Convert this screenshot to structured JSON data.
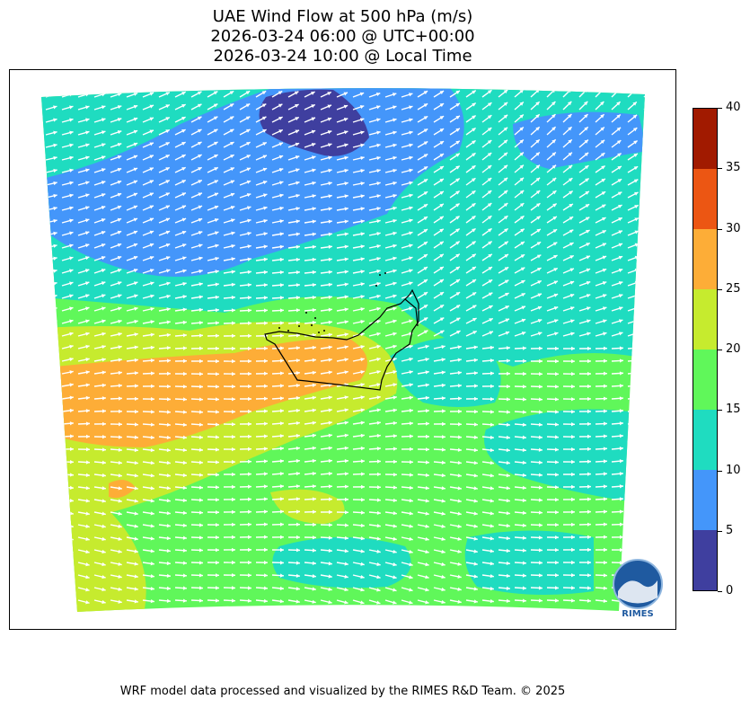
{
  "title": {
    "line1": "UAE Wind Flow at 500 hPa (m/s)",
    "line2": "2026-03-24 06:00 @ UTC+00:00",
    "line3": "2026-03-24 10:00 @ Local Time"
  },
  "colorbar": {
    "ticks": [
      "0",
      "5",
      "10",
      "15",
      "20",
      "25",
      "30",
      "35",
      "40"
    ],
    "colors": [
      "#3f3f9f",
      "#4496fa",
      "#1fdcc0",
      "#60f75a",
      "#c6eb2e",
      "#fdad37",
      "#ec5613",
      "#a11a00"
    ]
  },
  "logo": {
    "text": "RIMES",
    "color": "#1f5aa0"
  },
  "footer": "WRF model data processed and visualized by the RIMES R&D Team. © 2025",
  "colors": {
    "arrow": "#ffffff",
    "coastline": "#000000"
  }
}
